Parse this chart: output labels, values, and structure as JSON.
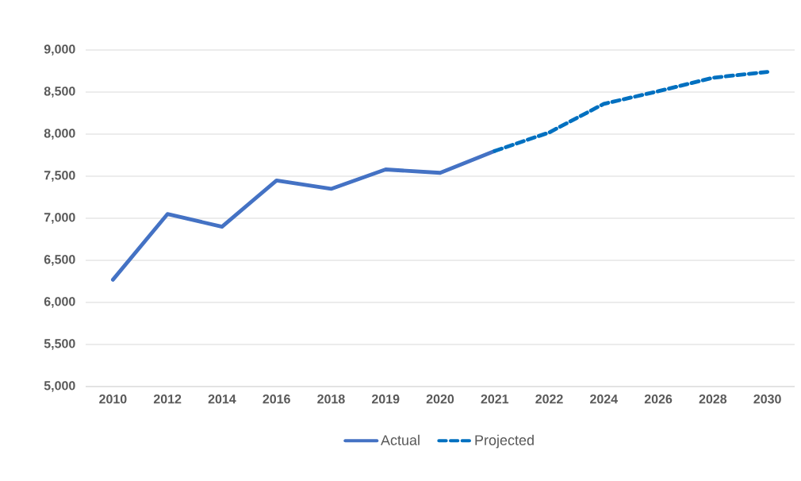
{
  "chart_data": {
    "type": "line",
    "categories": [
      "2010",
      "2012",
      "2014",
      "2016",
      "2018",
      "2019",
      "2020",
      "2021",
      "2022",
      "2024",
      "2026",
      "2028",
      "2030"
    ],
    "series": [
      {
        "name": "Actual",
        "color": "#4472c4",
        "line_style": "solid",
        "values": [
          6270,
          7050,
          6900,
          7450,
          7350,
          7580,
          7540,
          7800,
          null,
          null,
          null,
          null,
          null
        ]
      },
      {
        "name": "Projected",
        "color": "#0070c0",
        "line_style": "dashed",
        "values": [
          null,
          null,
          null,
          null,
          null,
          null,
          null,
          7800,
          8020,
          8360,
          8510,
          8670,
          8740
        ]
      }
    ],
    "ylim": [
      5000,
      9000
    ],
    "yticks": [
      {
        "value": 5000,
        "label": "5,000"
      },
      {
        "value": 5500,
        "label": "5,500"
      },
      {
        "value": 6000,
        "label": "6,000"
      },
      {
        "value": 6500,
        "label": "6,500"
      },
      {
        "value": 7000,
        "label": "7,000"
      },
      {
        "value": 7500,
        "label": "7,500"
      },
      {
        "value": 8000,
        "label": "8,000"
      },
      {
        "value": 8500,
        "label": "8,500"
      },
      {
        "value": 9000,
        "label": "9,000"
      }
    ],
    "grid": "y",
    "legend": "bottom",
    "marker": "none"
  }
}
